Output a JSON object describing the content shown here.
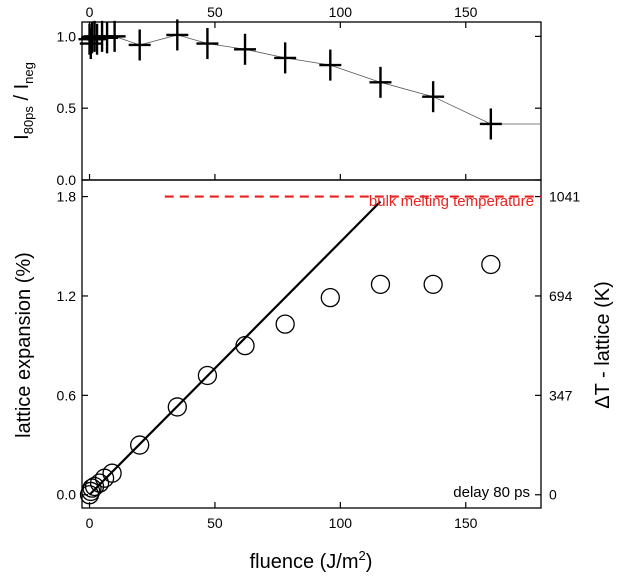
{
  "chart_data": [
    {
      "type": "scatter",
      "panel": "top",
      "xlim": [
        -3,
        180
      ],
      "ylim": [
        0.0,
        1.1
      ],
      "x_ticks": [
        0,
        50,
        100,
        150
      ],
      "x_tick_labels": [
        "0",
        "50",
        "100",
        "150"
      ],
      "y_ticks": [
        0.0,
        0.5,
        1.0
      ],
      "y_tick_labels": [
        "0.0",
        "0.5",
        "1.0"
      ],
      "ylabel_main": "I",
      "ylabel_sub1": "80ps",
      "ylabel_sep": " / I",
      "ylabel_sub2": "neg",
      "grid": false,
      "marker": "plus",
      "connected": true,
      "x": [
        0,
        0.5,
        1,
        2,
        3,
        5,
        7,
        10,
        20,
        35,
        47,
        62,
        78,
        96,
        116,
        137,
        160
      ],
      "y": [
        0.98,
        0.95,
        0.99,
        1.0,
        0.98,
        1.0,
        0.99,
        1.0,
        0.94,
        1.01,
        0.95,
        0.91,
        0.85,
        0.8,
        0.68,
        0.58,
        0.39
      ],
      "y_error": [
        0.06,
        0.06,
        0.06,
        0.06,
        0.06,
        0.06,
        0.06,
        0.06,
        0.06,
        0.06,
        0.06,
        0.06,
        0.06,
        0.06,
        0.06,
        0.06,
        0.06
      ],
      "line_extends_to": [
        180,
        0.39
      ]
    },
    {
      "type": "scatter",
      "panel": "bottom",
      "xlim": [
        -3,
        180
      ],
      "ylim": [
        -0.08,
        1.9
      ],
      "x_ticks": [
        0,
        50,
        100,
        150
      ],
      "x_tick_labels": [
        "0",
        "50",
        "100",
        "150"
      ],
      "y_ticks": [
        0.0,
        0.6,
        1.2,
        1.8
      ],
      "y_tick_labels": [
        "0.0",
        "0.6",
        "1.2",
        "1.8"
      ],
      "xlabel_main": "fluence (J/m",
      "xlabel_sup": "2",
      "xlabel_end": ")",
      "ylabel": "lattice expansion (%)",
      "right_ylabel": "ΔT - lattice (K)",
      "right_y_ticks": [
        0,
        347,
        694,
        1041
      ],
      "right_y_tick_labels": [
        "0",
        "347",
        "694",
        "1041"
      ],
      "right_y_per_percent": 578.3,
      "grid": false,
      "marker": "open-circle",
      "x": [
        0,
        0.5,
        1,
        2,
        4,
        6,
        9,
        20,
        35,
        47,
        62,
        78,
        96,
        116,
        137,
        160
      ],
      "y": [
        0.0,
        0.02,
        0.04,
        0.05,
        0.07,
        0.1,
        0.13,
        0.3,
        0.53,
        0.72,
        0.9,
        1.03,
        1.19,
        1.27,
        1.27,
        1.39
      ],
      "fit_line": {
        "x": [
          0,
          116
        ],
        "y": [
          0.0,
          1.77
        ]
      },
      "reference_line": {
        "label": "bulk melting temperature",
        "y": 1.8,
        "x_start": 30,
        "x_end": 180,
        "color": "#e8211f",
        "style": "dashed"
      },
      "annotation": "delay 80 ps"
    }
  ]
}
